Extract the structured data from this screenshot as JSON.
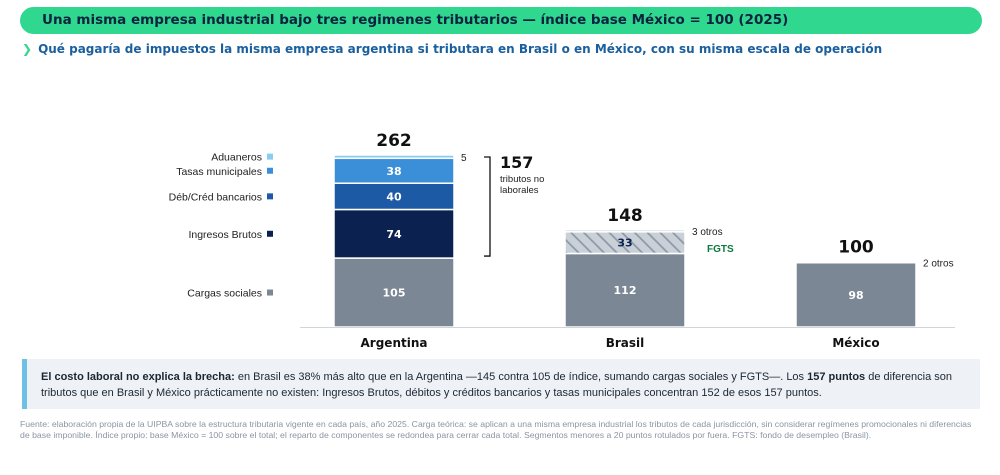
{
  "header": {
    "title": "Una misma empresa industrial bajo tres regimenes tributarios — índice base México = 100 (2025)",
    "subtitle": "Qué pagaría de impuestos la misma empresa argentina si tributara en Brasil o en México, con su misma escala de operación"
  },
  "chart_data": {
    "type": "bar",
    "stacked": true,
    "categories": [
      "Argentina",
      "Brasil",
      "México"
    ],
    "totals": [
      262,
      148,
      100
    ],
    "series": [
      {
        "name": "Cargas sociales",
        "color": "#7b8794",
        "values": [
          105,
          112,
          98
        ]
      },
      {
        "name": "Ingresos Brutos",
        "color": "#0b2250",
        "values": [
          74,
          0,
          0
        ]
      },
      {
        "name": "Déb/Créd bancarios",
        "color": "#1c5aa6",
        "values": [
          40,
          0,
          0
        ]
      },
      {
        "name": "Tasas municipales",
        "color": "#3a8fd8",
        "values": [
          38,
          0,
          0
        ]
      },
      {
        "name": "Aduaneros",
        "color": "#8ccbf0",
        "values": [
          5,
          0,
          0
        ]
      },
      {
        "name": "FGTS",
        "color": "#c3cad3",
        "pattern": "hatch",
        "values": [
          0,
          33,
          0
        ]
      },
      {
        "name": "otros",
        "color": "#c3cad3",
        "values": [
          0,
          3,
          2
        ]
      }
    ],
    "value_labels": {
      "Argentina": [
        "105",
        "74",
        "40",
        "38",
        "5"
      ],
      "Brasil": [
        "112",
        "33",
        "3 otros"
      ],
      "México": [
        "98",
        "2 otros"
      ]
    },
    "fgts_label": "FGTS",
    "bracket": {
      "value": "157",
      "text": [
        "tributos no",
        "laborales"
      ]
    },
    "ylim": [
      0,
      270
    ]
  },
  "note": {
    "lead": "El costo laboral no explica la brecha:",
    "text1": " en Brasil es 38% más alto que en la Argentina —145 contra 105 de índice, sumando cargas sociales y FGTS—. Los ",
    "bold": "157 puntos",
    "text2": " de diferencia son tributos que en Brasil y México prácticamente no existen: Ingresos Brutos, débitos y créditos bancarios y tasas municipales concentran 152 de esos 157 puntos."
  },
  "source": "Fuente: elaboración propia de la UIPBA sobre la estructura tributaria vigente en cada país, año 2025. Carga teórica: se aplican a una misma empresa industrial los tributos de cada jurisdicción, sin considerar regímenes promocionales ni diferencias de base imponible. Índice propio: base México = 100 sobre el total; el reparto de componentes se redondea para cerrar cada total. Segmentos menores a 20 puntos rotulados por fuera. FGTS: fondo de desempleo (Brasil)."
}
